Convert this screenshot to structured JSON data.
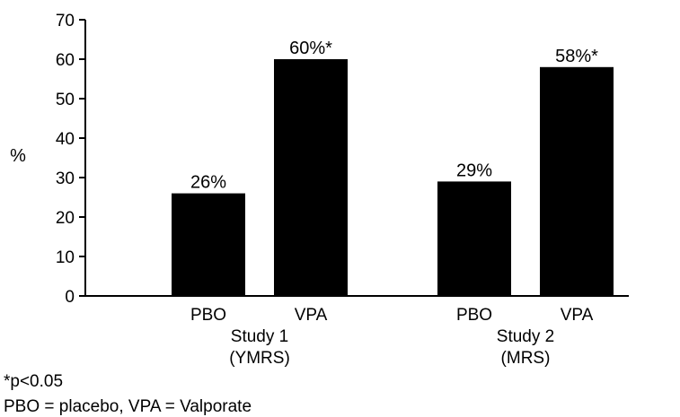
{
  "chart_data": {
    "type": "bar",
    "ylabel": "%",
    "xlabel": "",
    "ylim": [
      0,
      70
    ],
    "yticks": [
      "0",
      "10",
      "20",
      "30",
      "40",
      "50",
      "60",
      "70"
    ],
    "grid": false,
    "legend": "none",
    "bar_color": "#000000",
    "groups": [
      {
        "label_line1": "Study 1",
        "label_line2": "(YMRS)",
        "bars": [
          {
            "category": "PBO",
            "value": 26,
            "label": "26%"
          },
          {
            "category": "VPA",
            "value": 60,
            "label": "60%*"
          }
        ]
      },
      {
        "label_line1": "Study 2",
        "label_line2": "(MRS)",
        "bars": [
          {
            "category": "PBO",
            "value": 29,
            "label": "29%"
          },
          {
            "category": "VPA",
            "value": 58,
            "label": "58%*"
          }
        ]
      }
    ]
  },
  "footnotes": {
    "significance": "*p<0.05",
    "abbreviations": "PBO = placebo, VPA = Valporate"
  }
}
